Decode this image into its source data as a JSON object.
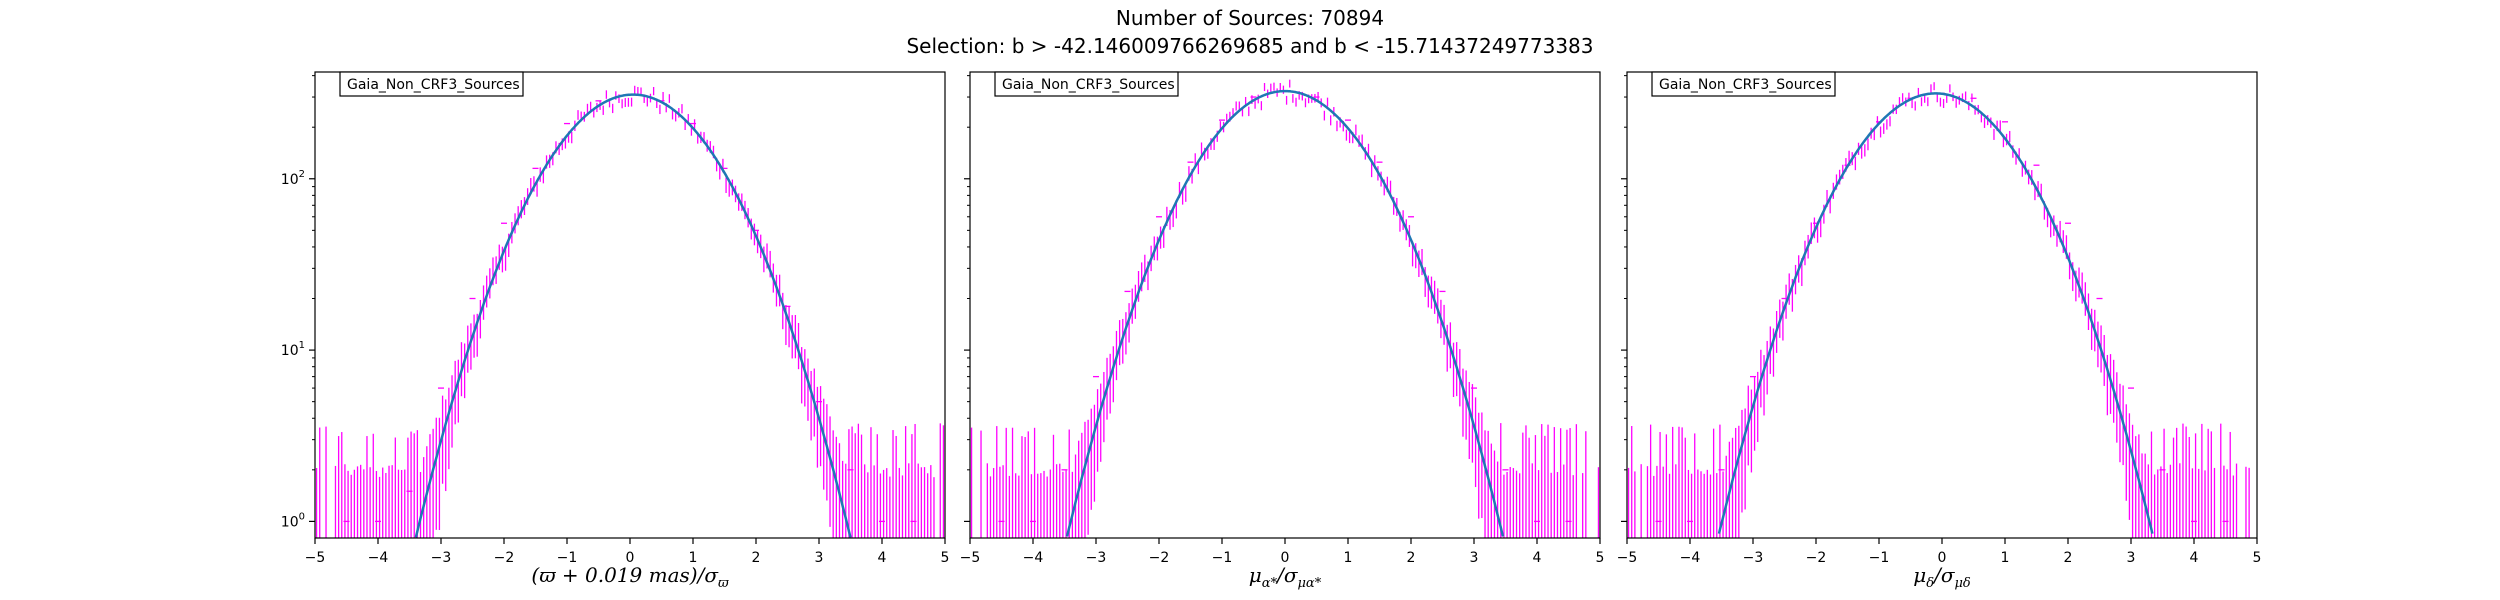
{
  "figure": {
    "title_line1": "Number of Sources: 70894",
    "title_line2": "Selection: b > -42.146009766269685 and b < -15.71437249773383"
  },
  "colors": {
    "histogram": "#ff00ff",
    "fit_curve": "#1f77b4",
    "axes": "#000000",
    "background": "#ffffff"
  },
  "chart_data": [
    {
      "type": "line",
      "legend": "Gaia_Non_CRF3_Sources",
      "legend_position": "top-left",
      "xlabel": "(ϖ + 0.019 mas)/σ",
      "xlabel_sub": "ϖ",
      "ylabel": "",
      "xlim": [
        -5,
        5
      ],
      "ylim": [
        0.8,
        420
      ],
      "yscale": "log",
      "grid": false,
      "xticks": [
        "−5",
        "−4",
        "−3",
        "−2",
        "−1",
        "0",
        "1",
        "2",
        "3",
        "4",
        "5"
      ],
      "yticks": [
        {
          "value": 1,
          "base": "10",
          "exp": "0"
        },
        {
          "value": 10,
          "base": "10",
          "exp": "1"
        },
        {
          "value": 100,
          "base": "10",
          "exp": "2"
        }
      ],
      "series": [
        {
          "kind": "histogram_errorbars",
          "x": [
            -4.5,
            -4.0,
            -3.5,
            -3.0,
            -2.5,
            -2.0,
            -1.5,
            -1.0,
            -0.5,
            0.0,
            0.5,
            1.0,
            1.5,
            2.0,
            2.5,
            3.0,
            3.5,
            4.0,
            4.5
          ],
          "y": [
            1,
            1,
            1.5,
            6,
            20,
            55,
            115,
            210,
            285,
            310,
            285,
            210,
            115,
            50,
            18,
            5,
            2,
            1,
            1
          ]
        },
        {
          "kind": "gaussian_fit",
          "amplitude": 310,
          "mean": 0.05,
          "sigma": 1.0
        }
      ]
    },
    {
      "type": "line",
      "legend": "Gaia_Non_CRF3_Sources",
      "legend_position": "top-left",
      "xlabel": "μ",
      "xlabel_sub": "α*",
      "xlabel_den": "σ",
      "xlabel_den_sub": "μα*",
      "ylabel": "",
      "xlim": [
        -5,
        5
      ],
      "ylim": [
        0.8,
        420
      ],
      "yscale": "log",
      "grid": false,
      "xticks": [
        "−5",
        "−4",
        "−3",
        "−2",
        "−1",
        "0",
        "1",
        "2",
        "3",
        "4",
        "5"
      ],
      "series": [
        {
          "kind": "histogram_errorbars",
          "x": [
            -4.5,
            -4.0,
            -3.5,
            -3.0,
            -2.5,
            -2.0,
            -1.5,
            -1.0,
            -0.5,
            0.0,
            0.5,
            1.0,
            1.5,
            2.0,
            2.5,
            3.0,
            3.5,
            4.0,
            4.5
          ],
          "y": [
            1,
            1,
            2,
            7,
            22,
            60,
            125,
            220,
            300,
            325,
            300,
            220,
            125,
            60,
            22,
            6,
            2,
            1,
            1
          ]
        },
        {
          "kind": "gaussian_fit",
          "amplitude": 325,
          "mean": 0.0,
          "sigma": 1.0
        }
      ]
    },
    {
      "type": "line",
      "legend": "Gaia_Non_CRF3_Sources",
      "legend_position": "top-left",
      "xlabel": "μ",
      "xlabel_sub": "δ",
      "xlabel_den": "σ",
      "xlabel_den_sub": "μδ",
      "ylabel": "",
      "xlim": [
        -5,
        5
      ],
      "ylim": [
        0.8,
        420
      ],
      "yscale": "log",
      "grid": false,
      "xticks": [
        "−5",
        "−4",
        "−3",
        "−2",
        "−1",
        "0",
        "1",
        "2",
        "3",
        "4",
        "5"
      ],
      "series": [
        {
          "kind": "histogram_errorbars",
          "x": [
            -4.5,
            -4.0,
            -3.5,
            -3.0,
            -2.5,
            -2.0,
            -1.5,
            -1.0,
            -0.5,
            0.0,
            0.5,
            1.0,
            1.5,
            2.0,
            2.5,
            3.0,
            3.5,
            4.0,
            4.5
          ],
          "y": [
            1,
            1,
            2,
            7,
            20,
            55,
            120,
            215,
            295,
            315,
            295,
            215,
            120,
            55,
            20,
            6,
            2,
            1,
            1
          ]
        },
        {
          "kind": "gaussian_fit",
          "amplitude": 315,
          "mean": -0.1,
          "sigma": 1.0
        }
      ]
    }
  ]
}
